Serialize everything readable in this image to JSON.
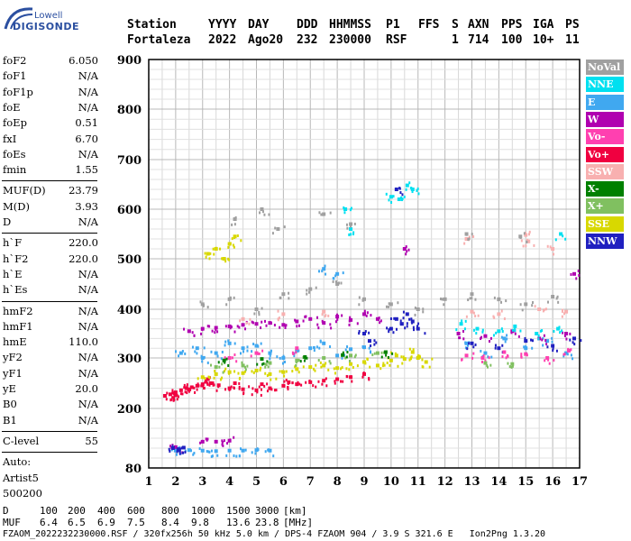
{
  "logo": {
    "line1": "Lowell",
    "line2": "DIGISONDE"
  },
  "header": {
    "row1": [
      "Station",
      "YYYY",
      "DAY",
      "DDD",
      "HHMMSS",
      "P1",
      "FFS",
      "S",
      "AXN",
      "PPS",
      "IGA",
      "PS"
    ],
    "row2": [
      "Fortaleza",
      "2022",
      "Ago20",
      "232",
      "230000",
      "RSF",
      "",
      "1",
      "714",
      "100",
      "10+",
      "11"
    ]
  },
  "params": {
    "group1": [
      {
        "k": "foF2",
        "v": "6.050"
      },
      {
        "k": "foF1",
        "v": "N/A"
      },
      {
        "k": "foF1p",
        "v": "N/A"
      },
      {
        "k": "foE",
        "v": "N/A"
      },
      {
        "k": "foEp",
        "v": "0.51"
      },
      {
        "k": "fxI",
        "v": "6.70"
      },
      {
        "k": "foEs",
        "v": "N/A"
      },
      {
        "k": "fmin",
        "v": "1.55"
      }
    ],
    "group2": [
      {
        "k": "MUF(D)",
        "v": "23.79"
      },
      {
        "k": "M(D)",
        "v": "3.93"
      },
      {
        "k": "D",
        "v": "N/A"
      }
    ],
    "group3": [
      {
        "k": "h`F",
        "v": "220.0"
      },
      {
        "k": "h`F2",
        "v": "220.0"
      },
      {
        "k": "h`E",
        "v": "N/A"
      },
      {
        "k": "h`Es",
        "v": "N/A"
      }
    ],
    "group4": [
      {
        "k": "hmF2",
        "v": "N/A"
      },
      {
        "k": "hmF1",
        "v": "N/A"
      },
      {
        "k": "hmE",
        "v": "110.0"
      },
      {
        "k": "yF2",
        "v": "N/A"
      },
      {
        "k": "yF1",
        "v": "N/A"
      },
      {
        "k": "yE",
        "v": "20.0"
      },
      {
        "k": "B0",
        "v": "N/A"
      },
      {
        "k": "B1",
        "v": "N/A"
      }
    ],
    "clevel": {
      "k": "C-level",
      "v": "55"
    },
    "auto": [
      "Auto:",
      "Artist5",
      "500200"
    ]
  },
  "legend": [
    {
      "label": "NoVal",
      "color": "#a0a0a0",
      "text": "#ffffff"
    },
    {
      "label": "NNE",
      "color": "#00e0f0",
      "text": "#ffffff"
    },
    {
      "label": "E",
      "color": "#40a8f0",
      "text": "#ffffff"
    },
    {
      "label": "W",
      "color": "#b000b0",
      "text": "#ffffff"
    },
    {
      "label": "Vo-",
      "color": "#ff40b0",
      "text": "#ffffff"
    },
    {
      "label": "Vo+",
      "color": "#f00040",
      "text": "#ffffff"
    },
    {
      "label": "SSW",
      "color": "#f8b0b0",
      "text": "#ffffff"
    },
    {
      "label": "X-",
      "color": "#008000",
      "text": "#ffffff"
    },
    {
      "label": "X+",
      "color": "#80c060",
      "text": "#ffffff"
    },
    {
      "label": "SSE",
      "color": "#d8d800",
      "text": "#ffffff"
    },
    {
      "label": "NNW",
      "color": "#2020c0",
      "text": "#ffffff"
    }
  ],
  "bottom": {
    "d_label": "D",
    "d_values": [
      "100",
      "200",
      "400",
      "600",
      "800",
      "1000",
      "1500",
      "3000"
    ],
    "d_unit": "[km]",
    "muf_label": "MUF",
    "muf_values": [
      "6.4",
      "6.5",
      "6.9",
      "7.5",
      "8.4",
      "9.8",
      "13.6",
      "23.8"
    ],
    "muf_unit": "[MHz]",
    "footer": "FZAOM_2022232230000.RSF / 320fx256h 50 kHz 5.0 km / DPS-4 FZAOM 904 / 3.9 S 321.6 E   Ion2Png 1.3.20"
  },
  "chart_data": {
    "type": "scatter",
    "xlim": [
      1,
      17
    ],
    "ylim": [
      80,
      900
    ],
    "x_ticks": [
      "1",
      "2",
      "3",
      "4",
      "5",
      "6",
      "7",
      "8",
      "9",
      "10",
      "11",
      "12",
      "13",
      "14",
      "15",
      "16",
      "17"
    ],
    "y_ticks": [
      "80",
      "200",
      "300",
      "400",
      "500",
      "600",
      "700",
      "800",
      "900"
    ],
    "y_scale": "log-like",
    "grid": true,
    "legend_placement": "right",
    "series": [
      {
        "name": "Vo+",
        "color": "#f00040",
        "points": [
          [
            1.6,
            225
          ],
          [
            1.8,
            228
          ],
          [
            2.0,
            232
          ],
          [
            2.2,
            236
          ],
          [
            2.4,
            240
          ],
          [
            2.6,
            242
          ],
          [
            2.8,
            245
          ],
          [
            3.0,
            248
          ],
          [
            3.3,
            250
          ],
          [
            3.6,
            246
          ],
          [
            4.0,
            240
          ],
          [
            4.5,
            238
          ],
          [
            5.0,
            236
          ],
          [
            5.5,
            240
          ],
          [
            6.0,
            245
          ],
          [
            6.5,
            248
          ],
          [
            7.0,
            252
          ],
          [
            7.5,
            255
          ],
          [
            8.0,
            258
          ],
          [
            8.5,
            262
          ],
          [
            9.0,
            268
          ],
          [
            2.0,
            226
          ],
          [
            2.5,
            238
          ],
          [
            3.2,
            258
          ],
          [
            4.2,
            250
          ],
          [
            5.2,
            248
          ],
          [
            6.2,
            252
          ]
        ]
      },
      {
        "name": "SSE",
        "color": "#d8d800",
        "points": [
          [
            3.0,
            262
          ],
          [
            3.5,
            268
          ],
          [
            4.0,
            272
          ],
          [
            4.5,
            270
          ],
          [
            5.0,
            275
          ],
          [
            5.5,
            268
          ],
          [
            6.0,
            272
          ],
          [
            6.5,
            278
          ],
          [
            7.0,
            282
          ],
          [
            7.5,
            285
          ],
          [
            8.0,
            280
          ],
          [
            8.5,
            288
          ],
          [
            9.0,
            292
          ],
          [
            9.5,
            285
          ],
          [
            10.0,
            295
          ],
          [
            10.5,
            298
          ],
          [
            11.0,
            300
          ],
          [
            11.3,
            292
          ],
          [
            3.5,
            520
          ],
          [
            4.0,
            530
          ],
          [
            3.8,
            500
          ],
          [
            4.2,
            545
          ],
          [
            3.2,
            510
          ],
          [
            10.2,
            305
          ],
          [
            10.8,
            312
          ]
        ]
      },
      {
        "name": "E",
        "color": "#40a8f0",
        "points": [
          [
            2.2,
            310
          ],
          [
            2.8,
            320
          ],
          [
            3.0,
            300
          ],
          [
            3.5,
            310
          ],
          [
            4.0,
            330
          ],
          [
            4.5,
            320
          ],
          [
            5.0,
            325
          ],
          [
            5.5,
            310
          ],
          [
            6.0,
            300
          ],
          [
            6.5,
            315
          ],
          [
            7.0,
            320
          ],
          [
            7.5,
            330
          ],
          [
            8.0,
            305
          ],
          [
            8.5,
            318
          ],
          [
            9.0,
            322
          ],
          [
            2.0,
            115
          ],
          [
            2.5,
            116
          ],
          [
            3.0,
            115
          ],
          [
            3.5,
            114
          ],
          [
            4.0,
            115
          ],
          [
            4.5,
            115
          ],
          [
            5.0,
            116
          ],
          [
            5.5,
            115
          ],
          [
            7.5,
            480
          ],
          [
            8.0,
            470
          ],
          [
            12.8,
            330
          ],
          [
            13.5,
            310
          ],
          [
            14.2,
            340
          ],
          [
            15.0,
            320
          ],
          [
            15.8,
            335
          ],
          [
            16.5,
            310
          ]
        ]
      },
      {
        "name": "W",
        "color": "#b000b0",
        "points": [
          [
            2.5,
            355
          ],
          [
            3.0,
            360
          ],
          [
            3.5,
            362
          ],
          [
            4.0,
            365
          ],
          [
            4.5,
            368
          ],
          [
            5.0,
            370
          ],
          [
            5.5,
            372
          ],
          [
            6.0,
            368
          ],
          [
            6.5,
            375
          ],
          [
            7.0,
            380
          ],
          [
            7.5,
            372
          ],
          [
            8.0,
            385
          ],
          [
            8.5,
            378
          ],
          [
            9.0,
            390
          ],
          [
            9.5,
            380
          ],
          [
            12.5,
            350
          ],
          [
            13.5,
            345
          ],
          [
            14.5,
            355
          ],
          [
            15.5,
            340
          ],
          [
            16.5,
            350
          ],
          [
            2.0,
            122
          ],
          [
            3.0,
            133
          ],
          [
            3.5,
            133
          ],
          [
            4.0,
            135
          ],
          [
            10.5,
            520
          ],
          [
            16.8,
            470
          ]
        ]
      },
      {
        "name": "NNW",
        "color": "#2020c0",
        "points": [
          [
            1.9,
            120
          ],
          [
            2.1,
            118
          ],
          [
            2.3,
            121
          ],
          [
            10.0,
            360
          ],
          [
            10.2,
            380
          ],
          [
            10.4,
            370
          ],
          [
            10.6,
            390
          ],
          [
            10.8,
            375
          ],
          [
            11.0,
            360
          ],
          [
            9.0,
            350
          ],
          [
            9.2,
            335
          ],
          [
            13.0,
            330
          ],
          [
            14.0,
            320
          ],
          [
            15.0,
            335
          ],
          [
            16.0,
            325
          ],
          [
            16.8,
            340
          ],
          [
            10.2,
            640
          ]
        ]
      },
      {
        "name": "NNE",
        "color": "#00e0f0",
        "points": [
          [
            10.0,
            625
          ],
          [
            10.3,
            620
          ],
          [
            10.6,
            648
          ],
          [
            10.8,
            640
          ],
          [
            12.6,
            370
          ],
          [
            13.2,
            360
          ],
          [
            14.0,
            355
          ],
          [
            14.6,
            365
          ],
          [
            15.4,
            350
          ],
          [
            16.2,
            360
          ],
          [
            16.3,
            550
          ],
          [
            8.3,
            600
          ],
          [
            8.5,
            560
          ]
        ]
      },
      {
        "name": "Vo-",
        "color": "#ff40b0",
        "points": [
          [
            12.8,
            305
          ],
          [
            13.4,
            300
          ],
          [
            14.2,
            312
          ],
          [
            15.0,
            308
          ],
          [
            15.8,
            300
          ],
          [
            16.6,
            315
          ],
          [
            4.0,
            300
          ],
          [
            5.0,
            310
          ],
          [
            6.5,
            320
          ]
        ]
      },
      {
        "name": "X+",
        "color": "#80c060",
        "points": [
          [
            3.5,
            282
          ],
          [
            4.5,
            285
          ],
          [
            5.5,
            290
          ],
          [
            6.5,
            295
          ],
          [
            7.5,
            300
          ],
          [
            8.5,
            305
          ],
          [
            9.5,
            310
          ],
          [
            13.5,
            290
          ],
          [
            14.5,
            288
          ]
        ]
      },
      {
        "name": "X-",
        "color": "#008000",
        "points": [
          [
            3.8,
            295
          ],
          [
            5.2,
            298
          ],
          [
            6.8,
            302
          ],
          [
            8.2,
            306
          ],
          [
            9.8,
            312
          ]
        ]
      },
      {
        "name": "SSW",
        "color": "#f8b0b0",
        "points": [
          [
            12.8,
            540
          ],
          [
            15.0,
            548
          ],
          [
            15.1,
            535
          ],
          [
            16.0,
            520
          ],
          [
            4.5,
            380
          ],
          [
            6.0,
            390
          ],
          [
            7.5,
            395
          ],
          [
            13.0,
            395
          ],
          [
            14.0,
            390
          ],
          [
            15.5,
            400
          ],
          [
            16.5,
            395
          ]
        ]
      },
      {
        "name": "NoVal",
        "color": "#a0a0a0",
        "points": [
          [
            3.0,
            410
          ],
          [
            4.0,
            420
          ],
          [
            5.0,
            400
          ],
          [
            6.0,
            430
          ],
          [
            7.0,
            440
          ],
          [
            8.0,
            450
          ],
          [
            9.0,
            420
          ],
          [
            10.0,
            410
          ],
          [
            11.0,
            400
          ],
          [
            4.2,
            580
          ],
          [
            5.2,
            600
          ],
          [
            5.8,
            560
          ],
          [
            7.5,
            590
          ],
          [
            8.5,
            570
          ],
          [
            12.0,
            420
          ],
          [
            13.0,
            430
          ],
          [
            14.0,
            420
          ],
          [
            15.0,
            410
          ],
          [
            16.0,
            425
          ],
          [
            12.8,
            550
          ],
          [
            14.8,
            545
          ]
        ]
      }
    ]
  }
}
